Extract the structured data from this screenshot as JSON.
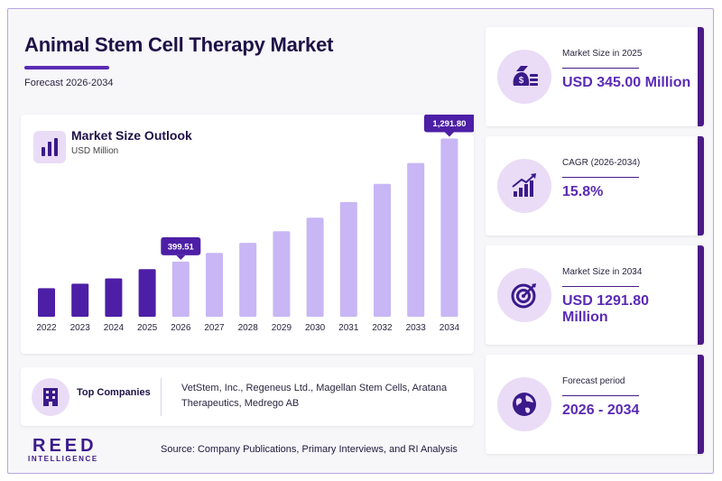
{
  "header": {
    "title": "Animal Stem Cell Therapy Market",
    "subtitle": "Forecast 2026-2034"
  },
  "chart_card": {
    "title": "Market Size Outlook",
    "unit": "USD Million",
    "icon": "bar-chart-icon"
  },
  "chart_data": {
    "type": "bar",
    "title": "Market Size Outlook",
    "ylabel": "USD Million",
    "categories": [
      "2022",
      "2023",
      "2024",
      "2025",
      "2026",
      "2027",
      "2028",
      "2029",
      "2030",
      "2031",
      "2032",
      "2033",
      "2034"
    ],
    "values": [
      207,
      240,
      278,
      345,
      399.51,
      463,
      536,
      620,
      718,
      832,
      963,
      1115,
      1291.8
    ],
    "phase": [
      "historical",
      "historical",
      "historical",
      "historical",
      "forecast",
      "forecast",
      "forecast",
      "forecast",
      "forecast",
      "forecast",
      "forecast",
      "forecast",
      "forecast"
    ],
    "data_labels": [
      {
        "category": "2026",
        "text": "399.51"
      },
      {
        "category": "2034",
        "text": "1,291.80"
      }
    ],
    "ylim": [
      0,
      1400
    ],
    "grid": false,
    "colors": {
      "historical": "#4d1fa6",
      "forecast": "#c8b6f5",
      "label_bg": "#4d1fa6",
      "label_text": "#ffffff"
    }
  },
  "companies": {
    "label": "Top Companies",
    "text": "VetStem, Inc., Regeneus Ltd., Magellan Stem Cells, Aratana Therapeutics, Medrego AB",
    "icon": "building-icon"
  },
  "logo": {
    "main": "REED",
    "sub": "INTELLIGENCE"
  },
  "source": "Source: Company Publications, Primary Interviews, and RI Analysis",
  "kpis": [
    {
      "label": "Market Size in 2025",
      "value": "USD 345.00 Million",
      "icon": "money-bag-icon"
    },
    {
      "label": "CAGR (2026-2034)",
      "value": "15.8%",
      "icon": "growth-chart-icon"
    },
    {
      "label": "Market Size in 2034",
      "value": "USD 1291.80 Million",
      "icon": "target-icon"
    },
    {
      "label": "Forecast period",
      "value": "2026 - 2034",
      "icon": "globe-icon"
    }
  ],
  "colors": {
    "accent": "#5a2bb5",
    "dark": "#1e1147",
    "light_accent": "#eadcf7",
    "kpi_border": "#4a1a86"
  }
}
